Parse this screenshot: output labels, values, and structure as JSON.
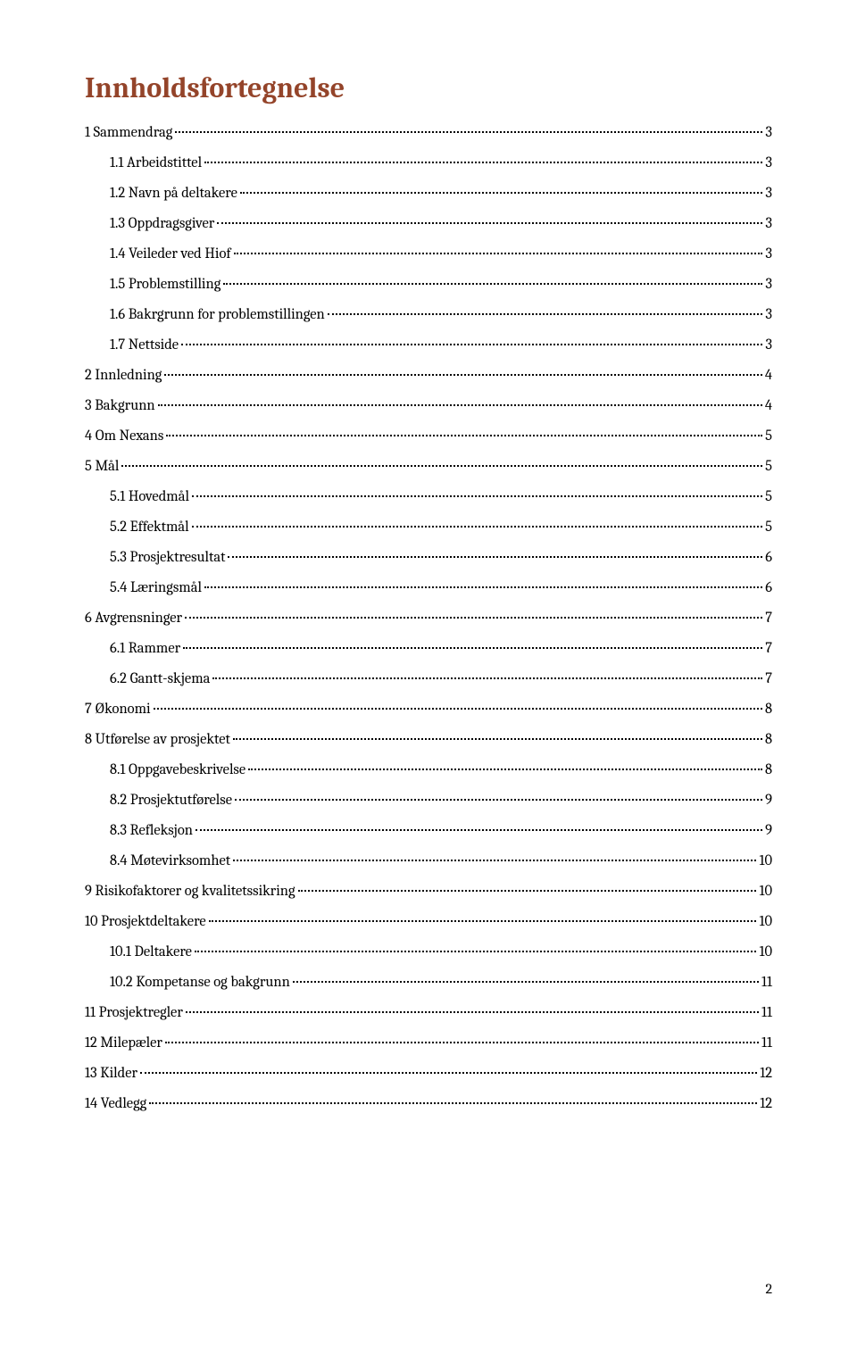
{
  "title": "Innholdsfortegnelse",
  "title_color": "#94442a",
  "text_color": "#000000",
  "background_color": "#ffffff",
  "dot_color": "#000000",
  "title_fontsize": 32,
  "item_fontsize": 16.5,
  "toc": [
    {
      "label": "1 Sammendrag",
      "page": "3",
      "level": 1
    },
    {
      "label": "1.1 Arbeidstittel",
      "page": "3",
      "level": 2
    },
    {
      "label": "1.2 Navn på deltakere",
      "page": "3",
      "level": 2
    },
    {
      "label": "1.3 Oppdragsgiver",
      "page": "3",
      "level": 2
    },
    {
      "label": "1.4 Veileder ved Hiof",
      "page": "3",
      "level": 2
    },
    {
      "label": "1.5 Problemstilling",
      "page": "3",
      "level": 2
    },
    {
      "label": "1.6 Bakrgrunn for problemstillingen",
      "page": "3",
      "level": 2
    },
    {
      "label": "1.7 Nettside",
      "page": "3",
      "level": 2
    },
    {
      "label": "2 Innledning",
      "page": "4",
      "level": 1
    },
    {
      "label": "3 Bakgrunn",
      "page": "4",
      "level": 1
    },
    {
      "label": "4 Om Nexans",
      "page": "5",
      "level": 1
    },
    {
      "label": "5 Mål",
      "page": "5",
      "level": 1
    },
    {
      "label": "5.1 Hovedmål",
      "page": "5",
      "level": 2
    },
    {
      "label": "5.2 Effektmål",
      "page": "5",
      "level": 2
    },
    {
      "label": "5.3 Prosjektresultat",
      "page": "6",
      "level": 2
    },
    {
      "label": "5.4 Læringsmål",
      "page": "6",
      "level": 2
    },
    {
      "label": "6 Avgrensninger",
      "page": "7",
      "level": 1
    },
    {
      "label": "6.1 Rammer",
      "page": "7",
      "level": 2
    },
    {
      "label": "6.2 Gantt-skjema",
      "page": "7",
      "level": 2
    },
    {
      "label": "7 Økonomi",
      "page": "8",
      "level": 1
    },
    {
      "label": "8 Utførelse av prosjektet",
      "page": "8",
      "level": 1
    },
    {
      "label": "8.1 Oppgavebeskrivelse",
      "page": "8",
      "level": 2
    },
    {
      "label": "8.2 Prosjektutførelse",
      "page": "9",
      "level": 2
    },
    {
      "label": "8.3 Refleksjon",
      "page": "9",
      "level": 2
    },
    {
      "label": "8.4 Møtevirksomhet",
      "page": "10",
      "level": 2
    },
    {
      "label": "9 Risikofaktorer og kvalitetssikring",
      "page": "10",
      "level": 1
    },
    {
      "label": "10 Prosjektdeltakere",
      "page": "10",
      "level": 1
    },
    {
      "label": "10.1 Deltakere",
      "page": "10",
      "level": 2
    },
    {
      "label": "10.2 Kompetanse og bakgrunn",
      "page": "11",
      "level": 2
    },
    {
      "label": "11 Prosjektregler",
      "page": "11",
      "level": 1
    },
    {
      "label": "12 Milepæler",
      "page": "11",
      "level": 1
    },
    {
      "label": "13 Kilder",
      "page": "12",
      "level": 1
    },
    {
      "label": "14 Vedlegg",
      "page": "12",
      "level": 1
    }
  ],
  "page_number": "2"
}
